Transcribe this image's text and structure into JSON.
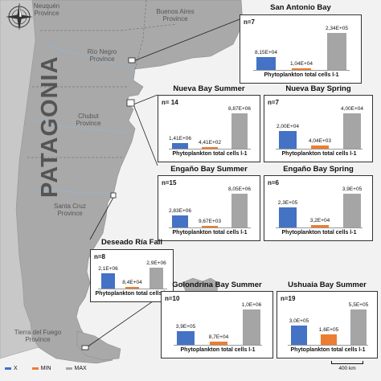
{
  "colors": {
    "ocean": "#f2f2f2",
    "land": "#c8c8c8",
    "patagonia": "#a9a9a9",
    "x_bar": "#4472c4",
    "min_bar": "#ed7d31",
    "max_bar": "#a5a5a5"
  },
  "icons": {
    "compass": "compass-rose-icon"
  },
  "map": {
    "title": "PATAGONIA",
    "labels": [
      {
        "text": "Neuquén\nProvince"
      },
      {
        "text": "Buenos Aires\nProvince"
      },
      {
        "text": "Río Negro\nProvince"
      },
      {
        "text": "Chubut\nProvince"
      },
      {
        "text": "Santa Cruz\nProvince"
      },
      {
        "text": "Tierra del Fuego\nProvince"
      }
    ]
  },
  "legend": [
    {
      "label": "X",
      "series": "x"
    },
    {
      "label": "MIN",
      "series": "min"
    },
    {
      "label": "MAX",
      "series": "max"
    }
  ],
  "scale_label": "400 km",
  "axis_label": "Phytoplankton total cells l-1",
  "chart_data": [
    {
      "type": "bar",
      "title": "San Antonio Bay",
      "n": "n=7",
      "series": [
        {
          "name": "X",
          "value": 81500,
          "label": "8,15E+04"
        },
        {
          "name": "MIN",
          "value": 10400,
          "label": "1,04E+04"
        },
        {
          "name": "MAX",
          "value": 234000,
          "label": "2,34E+05"
        }
      ]
    },
    {
      "type": "bar",
      "title": "Nueva Bay Summer",
      "n": "n= 14",
      "series": [
        {
          "name": "X",
          "value": 1410000,
          "label": "1,41E+06"
        },
        {
          "name": "MIN",
          "value": 441,
          "label": "4,41E+02"
        },
        {
          "name": "MAX",
          "value": 8870000,
          "label": "8,87E+06"
        }
      ]
    },
    {
      "type": "bar",
      "title": "Nueva Bay Spring",
      "n": "n=7",
      "series": [
        {
          "name": "X",
          "value": 20000,
          "label": "2,00E+04"
        },
        {
          "name": "MIN",
          "value": 4040,
          "label": "4,04E+03"
        },
        {
          "name": "MAX",
          "value": 40000,
          "label": "4,00E+04"
        }
      ]
    },
    {
      "type": "bar",
      "title": "Engaño Bay Summer",
      "n": "n=15",
      "series": [
        {
          "name": "X",
          "value": 2830000,
          "label": "2,83E+06"
        },
        {
          "name": "MIN",
          "value": 9670,
          "label": "9,67E+03"
        },
        {
          "name": "MAX",
          "value": 8050000,
          "label": "8,05E+06"
        }
      ]
    },
    {
      "type": "bar",
      "title": "Engaño Bay Spring",
      "n": "n=6",
      "series": [
        {
          "name": "X",
          "value": 230000,
          "label": "2,3E+05"
        },
        {
          "name": "MIN",
          "value": 32000,
          "label": "3,2E+04"
        },
        {
          "name": "MAX",
          "value": 390000,
          "label": "3,9E+05"
        }
      ]
    },
    {
      "type": "bar",
      "title": "Deseado Ría Fall",
      "n": "n=8",
      "series": [
        {
          "name": "X",
          "value": 2100000,
          "label": "2,1E+06"
        },
        {
          "name": "MIN",
          "value": 84000,
          "label": "8,4E+04"
        },
        {
          "name": "MAX",
          "value": 2900000,
          "label": "2,9E+06"
        }
      ]
    },
    {
      "type": "bar",
      "title": "Golondrina Bay Summer",
      "n": "n=10",
      "series": [
        {
          "name": "X",
          "value": 390000,
          "label": "3,9E+05"
        },
        {
          "name": "MIN",
          "value": 87000,
          "label": "8,7E+04"
        },
        {
          "name": "MAX",
          "value": 1000000,
          "label": "1,0E+06"
        }
      ]
    },
    {
      "type": "bar",
      "title": "Ushuaia Bay Summer",
      "n": "n=19",
      "series": [
        {
          "name": "X",
          "value": 300000,
          "label": "3,0E+05"
        },
        {
          "name": "MIN",
          "value": 160000,
          "label": "1,6E+05"
        },
        {
          "name": "MAX",
          "value": 550000,
          "label": "5,5E+05"
        }
      ]
    }
  ]
}
